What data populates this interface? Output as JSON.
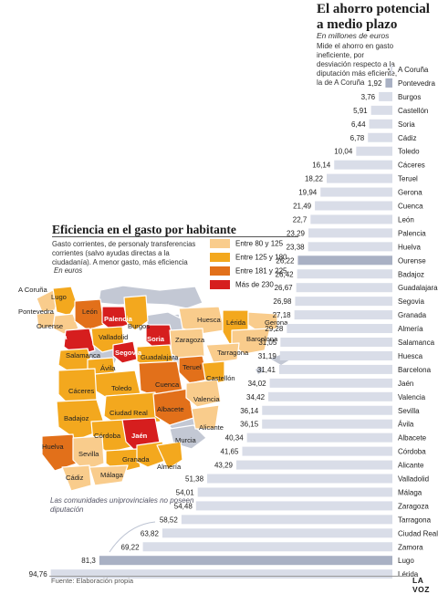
{
  "header": {
    "title": "El ahorro potencial a medio plazo",
    "subtitle": "En millones de euros",
    "description": "Mide el ahorro en gasto ineficiente, por desviación respecto a la diputación más eficiente, la de A Coruña"
  },
  "chart_data": [
    {
      "type": "bar",
      "orientation": "horizontal",
      "title": "El ahorro potencial a medio plazo",
      "subtitle": "En millones de euros",
      "highlight_color": "#a9b1c4",
      "bar_color": "#d9dde8",
      "categories": [
        "A Coruña",
        "Pontevedra",
        "Burgos",
        "Castellón",
        "Soria",
        "Cádiz",
        "Toledo",
        "Cáceres",
        "Teruel",
        "Gerona",
        "Cuenca",
        "León",
        "Palencia",
        "Huelva",
        "Ourense",
        "Badajoz",
        "Guadalajara",
        "Segovia",
        "Granada",
        "Almería",
        "Salamanca",
        "Huesca",
        "Barcelona",
        "Jaén",
        "Valencia",
        "Sevilla",
        "Ávila",
        "Albacete",
        "Córdoba",
        "Alicante",
        "Valladolid",
        "Málaga",
        "Zaragoza",
        "Tarragona",
        "Ciudad Real",
        "Zamora",
        "Lugo",
        "Lérida"
      ],
      "values": [
        0,
        1.92,
        3.76,
        5.91,
        6.44,
        6.78,
        10.04,
        16.14,
        18.22,
        19.94,
        21.49,
        22.7,
        23.29,
        23.38,
        26.22,
        26.42,
        26.67,
        26.98,
        27.18,
        29.28,
        31.05,
        31.19,
        31.41,
        34.02,
        34.42,
        36.14,
        36.15,
        40.34,
        41.65,
        43.29,
        51.38,
        54.01,
        54.48,
        58.52,
        63.82,
        69.22,
        81.3,
        94.76
      ],
      "value_labels": [
        "",
        "1,92",
        "3,76",
        "5,91",
        "6,44",
        "6,78",
        "10,04",
        "16,14",
        "18,22",
        "19,94",
        "21,49",
        "22,7",
        "23,29",
        "23,38",
        "26,22",
        "26,42",
        "26,67",
        "26,98",
        "27,18",
        "29,28",
        "31,05",
        "31,19",
        "31,41",
        "34,02",
        "34,42",
        "36,14",
        "36,15",
        "40,34",
        "41,65",
        "43,29",
        "51,38",
        "54,01",
        "54,48",
        "58,52",
        "63,82",
        "69,22",
        "81,3",
        "94,76"
      ],
      "highlighted": [
        "Pontevedra",
        "Ourense",
        "Lugo"
      ]
    },
    {
      "type": "choropleth",
      "title": "Eficiencia en el gasto por habitante",
      "description": "Gasto corrientes, de personaly transferencias corrientes (salvo ayudas directas a la ciudadanía). A menor gasto, más eficiencia",
      "units": "En euros",
      "legend": [
        {
          "label": "Entre 80 y 125",
          "color": "#f9cc8c"
        },
        {
          "label": "Entre 125 y 180",
          "color": "#f3a81e"
        },
        {
          "label": "Entre 181 y 225",
          "color": "#e2701a"
        },
        {
          "label": "Más de 230",
          "color": "#d61e1e"
        }
      ],
      "no_data_color": "#c3c8d4",
      "note": "Las comunidades uniprovinciales no poseen diputación",
      "province_labels": [
        "A Coruña",
        "Lugo",
        "Pontevedra",
        "Ourense",
        "León",
        "Palencia",
        "Burgos",
        "Zamora",
        "Valladolid",
        "Soria",
        "Segovia",
        "Salamanca",
        "Ávila",
        "Guadalajara",
        "Zaragoza",
        "Huesca",
        "Lérida",
        "Gerona",
        "Barcelona",
        "Tarragona",
        "Teruel",
        "Castellón",
        "Cáceres",
        "Toledo",
        "Cuenca",
        "Valencia",
        "Badajoz",
        "Ciudad Real",
        "Albacete",
        "Alicante",
        "Córdoba",
        "Jaén",
        "Murcia",
        "Huelva",
        "Sevilla",
        "Granada",
        "Almería",
        "Cádiz",
        "Málaga"
      ]
    }
  ],
  "footer": {
    "source": "Fuente: Elaboración propia",
    "brand": "LA VOZ"
  }
}
